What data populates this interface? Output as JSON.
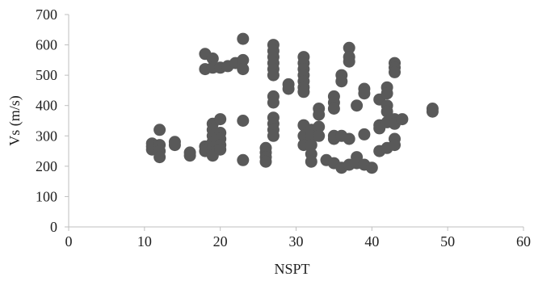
{
  "chart_data": {
    "type": "scatter",
    "title": "",
    "xlabel": "NSPT",
    "ylabel": "Vs (m/s)",
    "xlim": [
      0,
      60
    ],
    "ylim": [
      0,
      700
    ],
    "x_ticks": [
      "0",
      "10",
      "20",
      "30",
      "40",
      "50",
      "60"
    ],
    "y_ticks": [
      "0",
      "100",
      "200",
      "300",
      "400",
      "500",
      "600",
      "700"
    ],
    "grid": false,
    "legend": "none",
    "marker_color": "#595959",
    "series": [
      {
        "points": [
          [
            11,
            275
          ],
          [
            11,
            265
          ],
          [
            11,
            255
          ],
          [
            12,
            320
          ],
          [
            12,
            270
          ],
          [
            12,
            250
          ],
          [
            12,
            230
          ],
          [
            14,
            280
          ],
          [
            14,
            270
          ],
          [
            16,
            245
          ],
          [
            16,
            235
          ],
          [
            18,
            570
          ],
          [
            18,
            520
          ],
          [
            18,
            265
          ],
          [
            18,
            250
          ],
          [
            19,
            555
          ],
          [
            19,
            525
          ],
          [
            19,
            340
          ],
          [
            19,
            320
          ],
          [
            19,
            300
          ],
          [
            19,
            280
          ],
          [
            19,
            260
          ],
          [
            19,
            245
          ],
          [
            19,
            235
          ],
          [
            20,
            525
          ],
          [
            20,
            355
          ],
          [
            20,
            310
          ],
          [
            20,
            290
          ],
          [
            20,
            270
          ],
          [
            20,
            255
          ],
          [
            21,
            530
          ],
          [
            22,
            540
          ],
          [
            23,
            620
          ],
          [
            23,
            550
          ],
          [
            23,
            520
          ],
          [
            23,
            350
          ],
          [
            23,
            220
          ],
          [
            26,
            260
          ],
          [
            26,
            245
          ],
          [
            26,
            230
          ],
          [
            26,
            215
          ],
          [
            27,
            600
          ],
          [
            27,
            580
          ],
          [
            27,
            560
          ],
          [
            27,
            540
          ],
          [
            27,
            520
          ],
          [
            27,
            500
          ],
          [
            27,
            430
          ],
          [
            27,
            410
          ],
          [
            27,
            360
          ],
          [
            27,
            340
          ],
          [
            27,
            320
          ],
          [
            27,
            300
          ],
          [
            29,
            470
          ],
          [
            29,
            455
          ],
          [
            31,
            560
          ],
          [
            31,
            540
          ],
          [
            31,
            520
          ],
          [
            31,
            500
          ],
          [
            31,
            480
          ],
          [
            31,
            460
          ],
          [
            31,
            445
          ],
          [
            31,
            335
          ],
          [
            31,
            300
          ],
          [
            31,
            270
          ],
          [
            32,
            320
          ],
          [
            32,
            300
          ],
          [
            32,
            270
          ],
          [
            32,
            240
          ],
          [
            32,
            215
          ],
          [
            33,
            390
          ],
          [
            33,
            370
          ],
          [
            33,
            330
          ],
          [
            33,
            300
          ],
          [
            34,
            220
          ],
          [
            35,
            430
          ],
          [
            35,
            410
          ],
          [
            35,
            390
          ],
          [
            35,
            300
          ],
          [
            35,
            290
          ],
          [
            35,
            210
          ],
          [
            36,
            500
          ],
          [
            36,
            480
          ],
          [
            36,
            300
          ],
          [
            36,
            195
          ],
          [
            37,
            590
          ],
          [
            37,
            560
          ],
          [
            37,
            545
          ],
          [
            37,
            290
          ],
          [
            37,
            205
          ],
          [
            38,
            400
          ],
          [
            38,
            230
          ],
          [
            38,
            210
          ],
          [
            39,
            455
          ],
          [
            39,
            440
          ],
          [
            39,
            305
          ],
          [
            39,
            205
          ],
          [
            40,
            195
          ],
          [
            41,
            420
          ],
          [
            41,
            335
          ],
          [
            41,
            325
          ],
          [
            41,
            250
          ],
          [
            42,
            460
          ],
          [
            42,
            440
          ],
          [
            42,
            400
          ],
          [
            42,
            380
          ],
          [
            42,
            345
          ],
          [
            42,
            260
          ],
          [
            43,
            540
          ],
          [
            43,
            525
          ],
          [
            43,
            510
          ],
          [
            43,
            355
          ],
          [
            43,
            340
          ],
          [
            43,
            290
          ],
          [
            43,
            270
          ],
          [
            44,
            355
          ],
          [
            48,
            390
          ],
          [
            48,
            380
          ]
        ]
      }
    ]
  }
}
